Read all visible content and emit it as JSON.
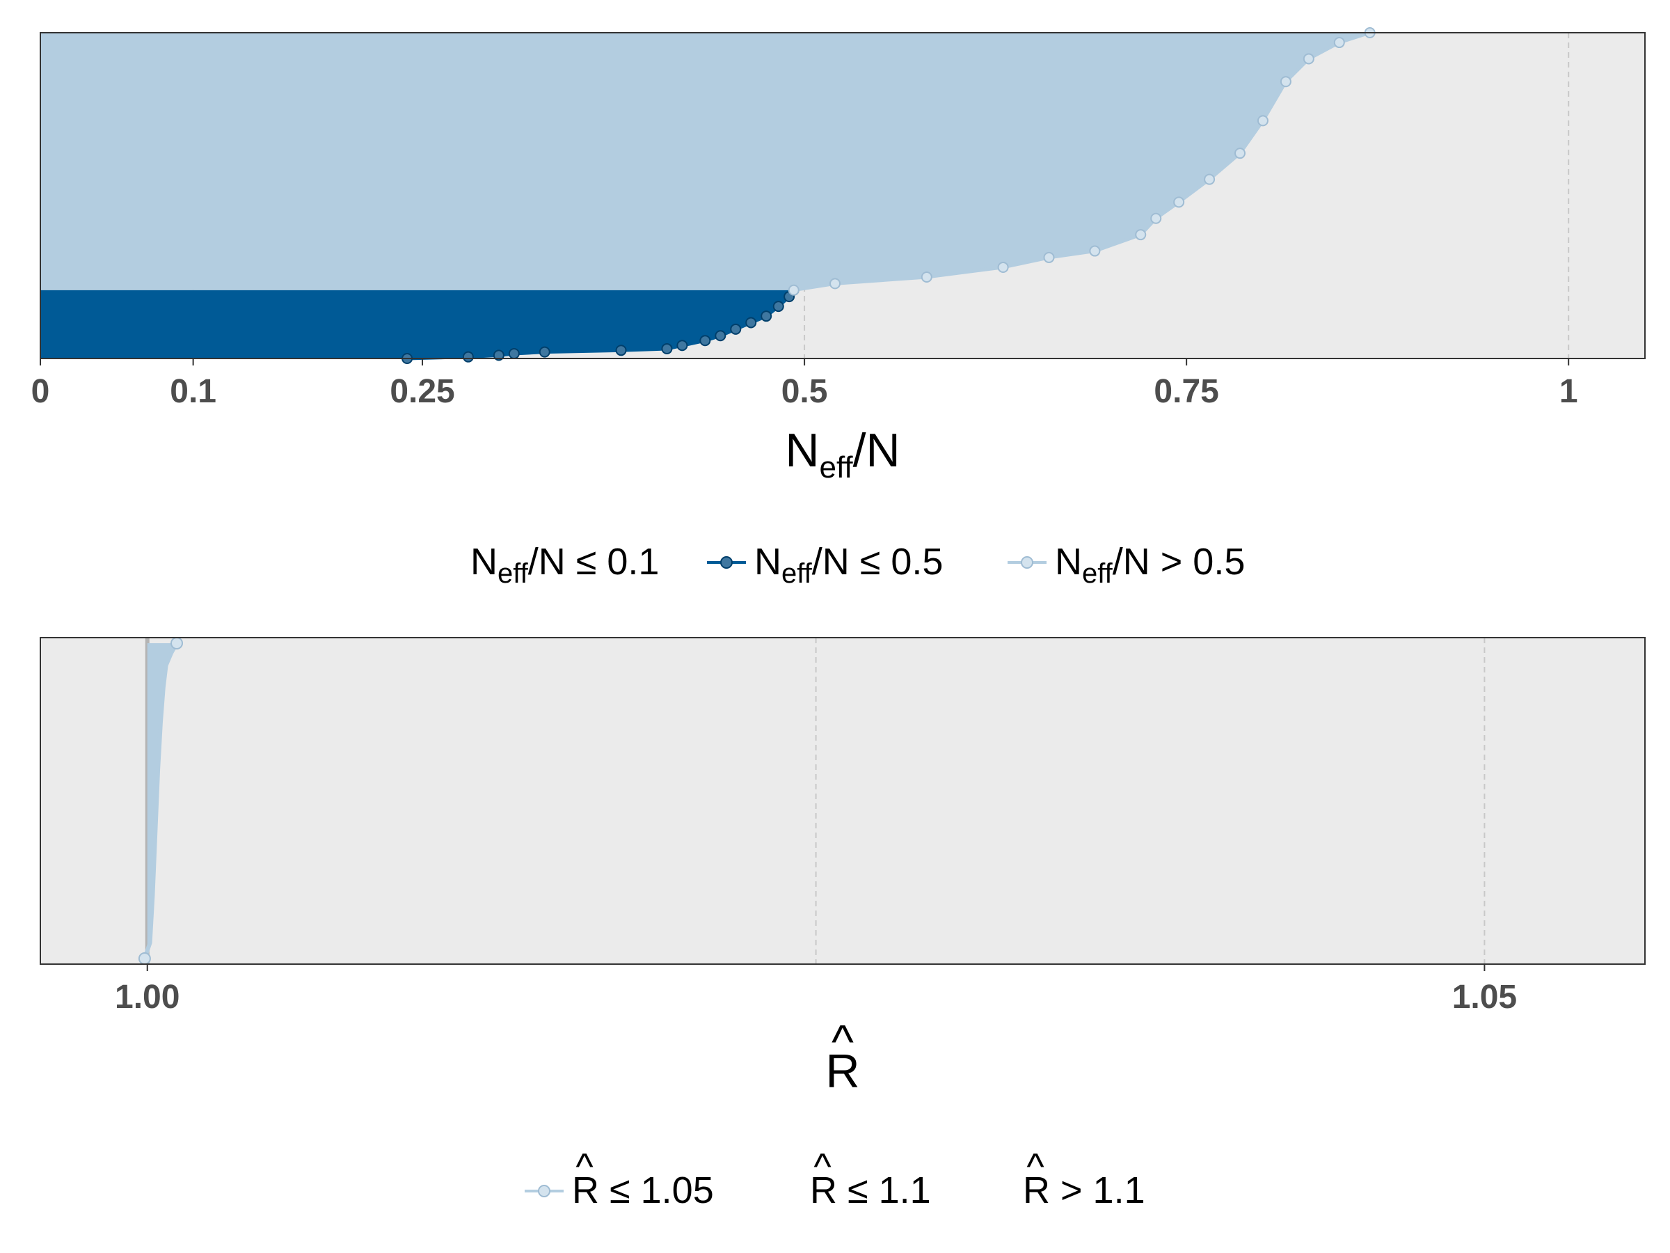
{
  "colors": {
    "dark": "#005a96",
    "light": "#b3cde0",
    "point_light": "#d4e3ee",
    "panel_bg": "#ebebeb",
    "grid": "#c8c8c8",
    "rule": "#b4b4b4",
    "border": "#333333"
  },
  "chart_data": [
    {
      "type": "area",
      "xlim": [
        0,
        1.05
      ],
      "x_ticks": [
        {
          "value": 0,
          "label": "0"
        },
        {
          "value": 0.1,
          "label": "0.1"
        },
        {
          "value": 0.25,
          "label": "0.25"
        },
        {
          "value": 0.5,
          "label": "0.5"
        },
        {
          "value": 0.75,
          "label": "0.75"
        },
        {
          "value": 1,
          "label": "1"
        }
      ],
      "reference_lines": [
        0.1,
        0.5,
        1
      ],
      "xlabel": {
        "main": "N",
        "sub": "eff",
        "tail": "/N"
      },
      "legend": [
        {
          "main": "N",
          "sub": "eff",
          "tail": "/N ≤ 0.1",
          "swatch": "none"
        },
        {
          "main": "N",
          "sub": "eff",
          "tail": "/N ≤ 0.5",
          "swatch": "dark"
        },
        {
          "main": "N",
          "sub": "eff",
          "tail": "/N > 0.5",
          "swatch": "light"
        }
      ],
      "series": [
        {
          "name": "N_eff/N ≤ 0.5",
          "color": "dark",
          "fraction_of_parameters": [
            0,
            0.21
          ],
          "x": [
            0.24,
            0.28,
            0.3,
            0.31,
            0.33,
            0.38,
            0.41,
            0.42,
            0.435,
            0.445,
            0.455,
            0.465,
            0.475,
            0.483,
            0.49,
            0.493
          ],
          "y_fraction": [
            0.0,
            0.005,
            0.01,
            0.015,
            0.02,
            0.025,
            0.03,
            0.04,
            0.055,
            0.07,
            0.09,
            0.11,
            0.13,
            0.16,
            0.19,
            0.21
          ]
        },
        {
          "name": "N_eff/N > 0.5",
          "color": "light",
          "fraction_of_parameters": [
            0.21,
            1
          ],
          "x": [
            0.493,
            0.52,
            0.58,
            0.63,
            0.66,
            0.69,
            0.72,
            0.73,
            0.745,
            0.765,
            0.785,
            0.8,
            0.815,
            0.83,
            0.85,
            0.87
          ],
          "y_fraction": [
            0.21,
            0.23,
            0.25,
            0.28,
            0.31,
            0.33,
            0.38,
            0.43,
            0.48,
            0.55,
            0.63,
            0.73,
            0.85,
            0.92,
            0.97,
            1.0
          ]
        }
      ]
    },
    {
      "type": "area",
      "xlim": [
        0.996,
        1.056
      ],
      "x_ticks": [
        {
          "value": 1.0,
          "label": "1.00"
        },
        {
          "value": 1.05,
          "label": "1.05"
        }
      ],
      "reference_lines": [
        1.0,
        1.025,
        1.05
      ],
      "xlabel": {
        "main": "R",
        "hat": "^"
      },
      "legend": [
        {
          "main": "R",
          "hat": "^",
          "tail": " ≤ 1.05",
          "swatch": "light"
        },
        {
          "main": "R",
          "hat": "^",
          "tail": " ≤ 1.1",
          "swatch": "none"
        },
        {
          "main": "R",
          "hat": "^",
          "tail": " > 1.1",
          "swatch": "none"
        }
      ],
      "series": [
        {
          "name": "R-hat ≤ 1.05",
          "color": "light",
          "x": [
            0.9999,
            1.0001,
            1.0002,
            1.0003,
            1.0004,
            1.0005,
            1.0006,
            1.0007,
            1.0009,
            1.0011
          ],
          "y_fraction": [
            0.0,
            0.05,
            0.2,
            0.4,
            0.6,
            0.75,
            0.86,
            0.93,
            0.97,
            1.0
          ]
        }
      ]
    }
  ]
}
